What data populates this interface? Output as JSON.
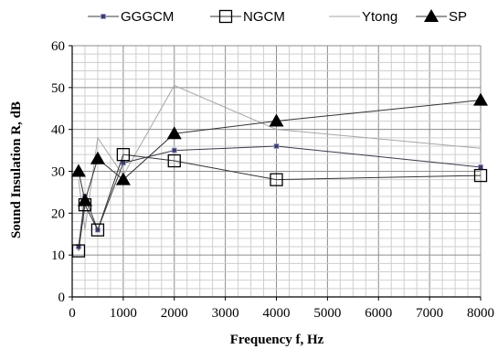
{
  "chart_data": {
    "type": "line",
    "title": "",
    "xlabel": "Frequency  f, Hz",
    "ylabel": "Sound Insulation  R, dB",
    "xlim": [
      0,
      8000
    ],
    "ylim": [
      0,
      60
    ],
    "x_ticks": [
      0,
      1000,
      2000,
      3000,
      4000,
      5000,
      6000,
      7000,
      8000
    ],
    "y_ticks": [
      0,
      10,
      20,
      30,
      40,
      50,
      60
    ],
    "grid": true,
    "legend_position": "top",
    "series": [
      {
        "name": "GGGCM",
        "marker": "small-square",
        "color": "#3a3a4a",
        "marker_color": "#3b3b6e",
        "x": [
          125,
          250,
          500,
          1000,
          2000,
          4000,
          8000
        ],
        "y": [
          12,
          24,
          16,
          32,
          35,
          36,
          31
        ]
      },
      {
        "name": "NGCM",
        "marker": "open-square",
        "color": "#333333",
        "marker_color": "#000000",
        "x": [
          125,
          250,
          500,
          1000,
          2000,
          4000,
          8000
        ],
        "y": [
          11,
          22,
          16,
          34,
          32.5,
          28,
          29
        ]
      },
      {
        "name": "Ytong",
        "marker": "none",
        "color": "#a6a6a6",
        "marker_color": "#a6a6a6",
        "x": [
          125,
          250,
          500,
          1000,
          2000,
          4000,
          8000
        ],
        "y": [
          28,
          16,
          38,
          29,
          50.5,
          40,
          35.5
        ]
      },
      {
        "name": "SP",
        "marker": "filled-triangle",
        "color": "#333333",
        "marker_color": "#000000",
        "x": [
          125,
          250,
          500,
          1000,
          2000,
          4000,
          8000
        ],
        "y": [
          30,
          23,
          33,
          28,
          39,
          42,
          47
        ]
      }
    ]
  }
}
